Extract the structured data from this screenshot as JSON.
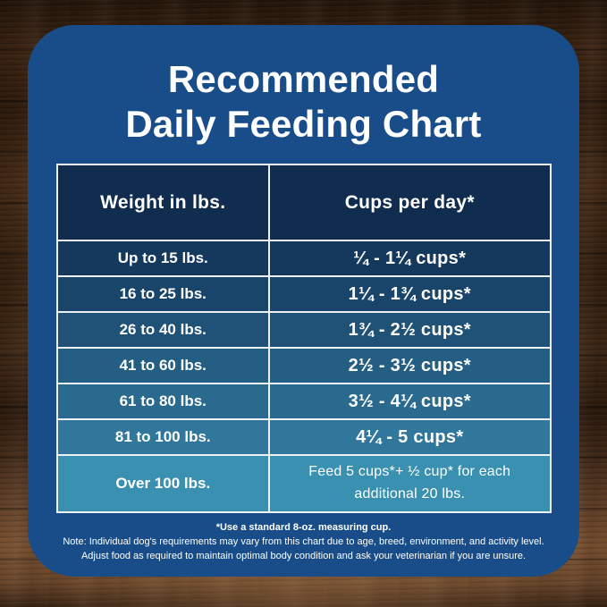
{
  "title": {
    "line1": "Recommended",
    "line2": "Daily Feeding Chart"
  },
  "chart_data": {
    "type": "table",
    "title": "Recommended Daily Feeding Chart",
    "columns": [
      "Weight in lbs.",
      "Cups per day*"
    ],
    "rows": [
      [
        "Up to 15 lbs.",
        "¼ - 1¼ cups*"
      ],
      [
        "16 to 25 lbs.",
        "1¼ - 1¾ cups*"
      ],
      [
        "26 to 40 lbs.",
        "1¾ - 2½ cups*"
      ],
      [
        "41 to 60 lbs.",
        "2½ - 3½ cups*"
      ],
      [
        "61 to 80 lbs.",
        "3½ - 4¼ cups*"
      ],
      [
        "81 to 100 lbs.",
        "4¼ - 5 cups*"
      ],
      [
        "Over 100 lbs.",
        "Feed 5 cups*+ ½ cup* for each additional 20 lbs."
      ]
    ],
    "footnotes": [
      "*Use a standard 8-oz. measuring cup.",
      "Note: Individual dog's requirements may vary from this chart due to age, breed, environment, and activity level.",
      "Adjust food as required to maintain optimal body condition and ask your veterinarian if you are unsure."
    ]
  },
  "footnotes": {
    "line1": "*Use a standard 8-oz. measuring cup.",
    "line2": "Note: Individual dog's requirements may vary from this chart due to age, breed, environment, and activity level.",
    "line3": "Adjust food as required to maintain optimal body condition and ask your veterinarian if you are unsure."
  },
  "colors": {
    "panel_blue": "#194d89",
    "header_navy": "#102d50",
    "table_border": "#eef2f6",
    "text": "#ffffff",
    "row_colors": [
      "#15395d",
      "#1a456a",
      "#1f5276",
      "#245e83",
      "#2a6a8f",
      "#30779b",
      "#3a90b0"
    ]
  }
}
